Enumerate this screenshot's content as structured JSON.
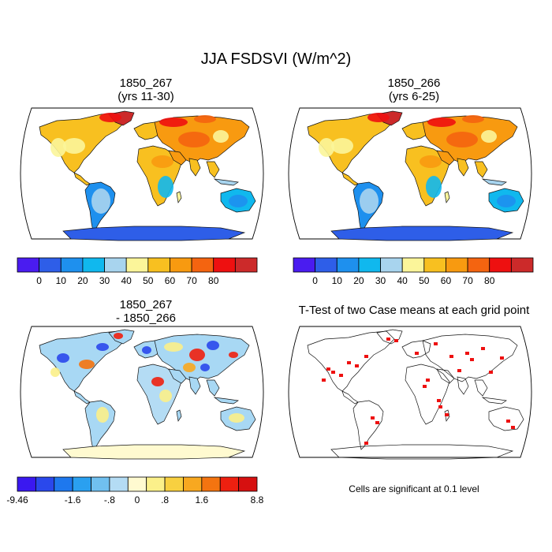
{
  "title": "JJA FSDSVI (W/m^2)",
  "panels": [
    {
      "id": "p1",
      "title_line1": "1850_267",
      "title_line2": "(yrs 11-30)"
    },
    {
      "id": "p2",
      "title_line1": "1850_266",
      "title_line2": "(yrs 6-25)"
    },
    {
      "id": "p3",
      "title_line1": "1850_267",
      "title_line2": "- 1850_266"
    },
    {
      "id": "p4",
      "title_line1": "T-Test of two Case means at each grid point",
      "title_line2": ""
    }
  ],
  "colorbar_top": {
    "labels": [
      "0",
      "10",
      "20",
      "30",
      "40",
      "50",
      "60",
      "70",
      "80"
    ],
    "colors": [
      "#4a1cf0",
      "#2e5ee8",
      "#1e90ee",
      "#10b8ee",
      "#a8d4ee",
      "#fbf59a",
      "#f8c020",
      "#f89a10",
      "#f46410",
      "#ee1010",
      "#cc2a2a"
    ]
  },
  "colorbar_diff": {
    "labels": [
      "-9.46",
      "-1.6",
      "-.8",
      "0",
      ".8",
      "1.6",
      "8.8"
    ],
    "colors": [
      "#3a18f0",
      "#2a48ec",
      "#1e78ee",
      "#2aa0f0",
      "#70c0f0",
      "#b4dcf4",
      "#fffad0",
      "#fbf08a",
      "#f8d040",
      "#f8a820",
      "#f47410",
      "#ee2010",
      "#d61010"
    ]
  },
  "significance_note": "Cells are significant at 0.1 level",
  "colors": {
    "hot": "#ee1010",
    "warm": "#f8a820",
    "ocean": "#ffffff",
    "antarctica": "#2e4ed8",
    "sig": "#ee1010"
  }
}
